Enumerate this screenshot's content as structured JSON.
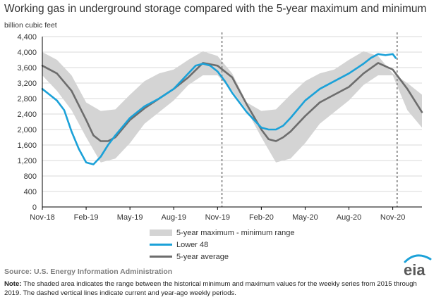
{
  "title": "Working gas in underground storage compared with the 5-year maximum and minimum",
  "unit_label": "billion cubic feet",
  "legend": {
    "range_label": "5-year maximum - minimum range",
    "lower48_label": "Lower 48",
    "avg_label": "5-year average"
  },
  "source": "Source:  U.S. Energy Information Administration",
  "note": {
    "label": "Note:",
    "text": " The shaded area indicates the range between the historical minimum and maximum values for the weekly series from 2015 through 2019. The dashed vertical lines indicate current and year-ago weekly periods."
  },
  "logo_text": "eia",
  "colors": {
    "range": "#d4d4d4",
    "lower48": "#1ba1d8",
    "avg": "#6d6d6d",
    "axis": "#000000",
    "grid": "#d9d9d9",
    "dashed": "#8c8c8c",
    "logo_arc": "#1ba1d8"
  },
  "chart_data": {
    "type": "line",
    "title": "Working gas in underground storage compared with the 5-year maximum and minimum",
    "ylabel": "billion cubic feet",
    "xlabel": "",
    "ylim": [
      0,
      4400
    ],
    "yticks": [
      0,
      400,
      800,
      1200,
      1600,
      2000,
      2400,
      2800,
      3200,
      3600,
      4000,
      4400
    ],
    "ytick_labels": [
      "0",
      "400",
      "800",
      "1,200",
      "1,600",
      "2,000",
      "2,400",
      "2,800",
      "3,200",
      "3,600",
      "4,000",
      "4,400"
    ],
    "x_units": "months since Nov-18",
    "xlim": [
      0,
      26
    ],
    "xticks": [
      0,
      3,
      6,
      9,
      12,
      15,
      18,
      21,
      24
    ],
    "xtick_labels": [
      "Nov-18",
      "Feb-19",
      "May-19",
      "Aug-19",
      "Nov-19",
      "Feb-20",
      "May-20",
      "Aug-20",
      "Nov-20"
    ],
    "dashed_x": [
      12.3,
      24.3
    ],
    "grid": "horizontal",
    "legend_position": "bottom-center",
    "series": [
      {
        "name": "5-year maximum - minimum range",
        "type": "band",
        "x": [
          0,
          1,
          2,
          3,
          4,
          5,
          6,
          7,
          8,
          9,
          10,
          11,
          12,
          13,
          14,
          15,
          16,
          17,
          18,
          19,
          20,
          21,
          22,
          23,
          24,
          25,
          26
        ],
        "upper": [
          4000,
          3800,
          3400,
          2700,
          2480,
          2520,
          2900,
          3250,
          3450,
          3550,
          3800,
          4020,
          3900,
          3450,
          2700,
          2480,
          2520,
          2900,
          3250,
          3450,
          3550,
          3800,
          4020,
          3900,
          3450,
          3200,
          2900
        ],
        "lower": [
          3400,
          3000,
          2500,
          1800,
          1150,
          1250,
          1650,
          2150,
          2450,
          2750,
          3150,
          3400,
          3400,
          3000,
          2500,
          1800,
          1150,
          1250,
          1650,
          2150,
          2450,
          2750,
          3150,
          3400,
          3400,
          2500,
          2050
        ]
      },
      {
        "name": "Lower 48",
        "x": [
          0,
          0.5,
          1,
          1.5,
          2,
          2.5,
          3,
          3.5,
          4,
          4.5,
          5,
          6,
          7,
          8,
          9,
          10,
          10.5,
          11,
          11.5,
          12,
          12.5,
          13,
          14,
          15,
          15.5,
          16,
          16.5,
          17,
          18,
          19,
          20,
          21,
          22,
          22.5,
          23,
          23.5,
          24,
          24.2
        ],
        "values": [
          3050,
          2900,
          2750,
          2500,
          1950,
          1500,
          1150,
          1100,
          1300,
          1600,
          1850,
          2300,
          2600,
          2800,
          3050,
          3450,
          3650,
          3700,
          3650,
          3500,
          3250,
          2950,
          2450,
          2050,
          2000,
          2000,
          2100,
          2300,
          2750,
          3050,
          3250,
          3450,
          3700,
          3850,
          3950,
          3920,
          3950,
          3850
        ]
      },
      {
        "name": "5-year average",
        "x": [
          0,
          1,
          2,
          3,
          3.5,
          4,
          4.5,
          5,
          6,
          7,
          8,
          9,
          10,
          11,
          12,
          13,
          14,
          15,
          15.5,
          16,
          16.5,
          17,
          18,
          19,
          20,
          21,
          22,
          23,
          24,
          25,
          26
        ],
        "values": [
          3650,
          3450,
          3000,
          2250,
          1850,
          1700,
          1700,
          1800,
          2250,
          2550,
          2800,
          3050,
          3350,
          3720,
          3650,
          3350,
          2650,
          2000,
          1750,
          1700,
          1800,
          1950,
          2350,
          2700,
          2900,
          3100,
          3450,
          3720,
          3550,
          3050,
          2450
        ]
      }
    ]
  }
}
